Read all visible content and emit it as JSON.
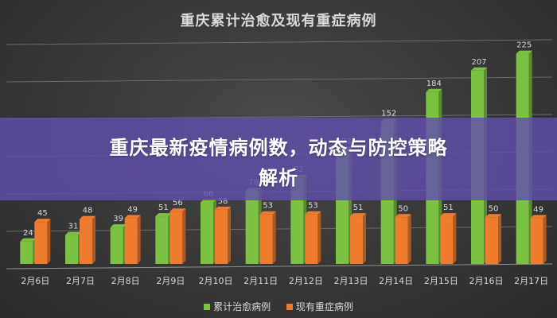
{
  "chart_data": {
    "type": "bar",
    "title": "重庆累计治愈及现有重症病例",
    "categories": [
      "2月6日",
      "2月7日",
      "2月8日",
      "2月9日",
      "2月10日",
      "2月11日",
      "2月12日",
      "2月13日",
      "2月14日",
      "2月15日",
      "2月16日",
      "2月17日"
    ],
    "series": [
      {
        "name": "累计治愈病例",
        "color": "#7cc242",
        "values": [
          24,
          31,
          39,
          51,
          66,
          78,
          92,
          122,
          152,
          184,
          207,
          225
        ]
      },
      {
        "name": "现有重症病例",
        "color": "#ef7b2f",
        "values": [
          45,
          48,
          49,
          56,
          58,
          53,
          53,
          51,
          50,
          51,
          50,
          49
        ]
      }
    ],
    "ylim": [
      0,
      240
    ],
    "grid": true,
    "legend_position": "bottom"
  },
  "overlay": {
    "line1": "重庆最新疫情病例数，动态与防控策略",
    "line2": "解析",
    "color": "#604eaa"
  },
  "style": {
    "label_color": "#d9d9d9",
    "grid_color": "#6a6a6a"
  }
}
